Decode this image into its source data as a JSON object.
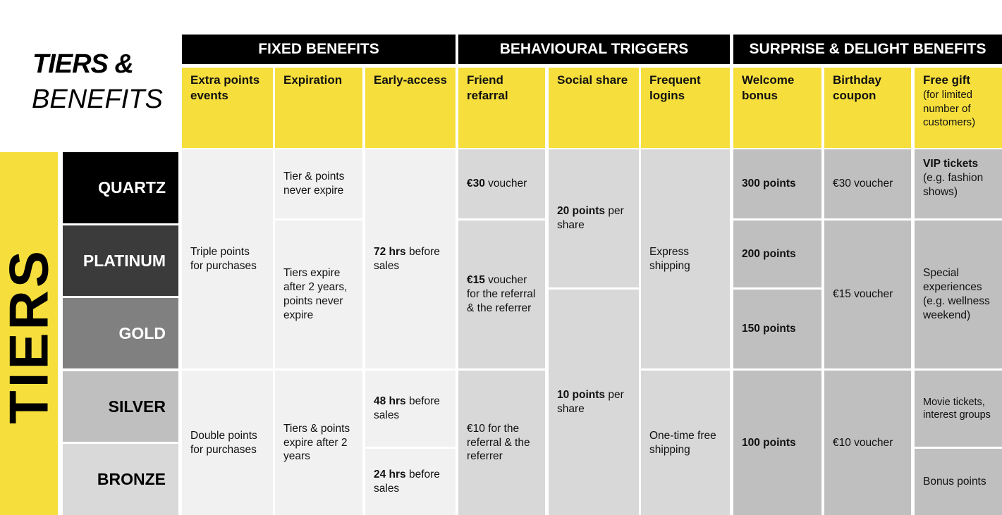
{
  "title": {
    "line1": "TIERS &",
    "line2": "BENEFITS"
  },
  "tiers_label": "TIERS",
  "groups": [
    "FIXED BENEFITS",
    "BEHAVIOURAL TRIGGERS",
    "SURPRISE & DELIGHT BENEFITS"
  ],
  "columns": {
    "extra_points": "Extra points events",
    "expiration": "Expiration",
    "early_access": "Early-access",
    "friend_referral": "Friend refarral",
    "social_share": "Social share",
    "frequent_logins": "Frequent logins",
    "welcome_bonus": "Welcome bonus",
    "birthday_coupon": "Birthday coupon",
    "free_gift": "Free gift",
    "free_gift_note": "(for limited number of customers)"
  },
  "tiers": [
    "QUARTZ",
    "PLATINUM",
    "GOLD",
    "SILVER",
    "BRONZE"
  ],
  "colors": {
    "yellow": "#f6df3c",
    "black": "#000000",
    "quartz": "#000000",
    "platinum": "#3b3b3b",
    "gold": "#808080",
    "silver": "#bfbfbf",
    "bronze": "#d9d9d9"
  },
  "cells": {
    "extra_points_top": "Triple points for purchases",
    "extra_points_bottom": "Double points for purchases",
    "expiration_quartz": "Tier & points never expire",
    "expiration_mid": "Tiers expire after 2 years, points never expire",
    "expiration_bottom": "Tiers & points expire after 2 years",
    "early_top_bold": "72 hrs",
    "early_top_rest": " before sales",
    "early_silver_bold": "48 hrs",
    "early_silver_rest": " before sales",
    "early_bronze_bold": "24 hrs",
    "early_bronze_rest": " before sales",
    "referral_quartz_bold": "€30",
    "referral_quartz_rest": " voucher",
    "referral_mid_bold": "€15",
    "referral_mid_rest": " voucher for the referral & the referrer",
    "referral_bottom": "€10 for the referral & the referrer",
    "social_top_bold": "20 points",
    "social_top_rest": " per share",
    "social_bottom_bold": "10 points",
    "social_bottom_rest": " per share",
    "logins_top": "Express shipping",
    "logins_bottom": "One-time free shipping",
    "welcome_quartz": "300 points",
    "welcome_platinum": "200 points",
    "welcome_gold": "150 points",
    "welcome_bottom": "100 points",
    "birthday_quartz": "€30 voucher",
    "birthday_mid": "€15 voucher",
    "birthday_bottom": "€10 voucher",
    "gift_quartz_bold": "VIP tickets",
    "gift_quartz_rest": "(e.g. fashion shows)",
    "gift_mid": "Special experiences (e.g. wellness weekend)",
    "gift_silver": "Movie tickets, interest groups",
    "gift_bronze": "Bonus points"
  }
}
